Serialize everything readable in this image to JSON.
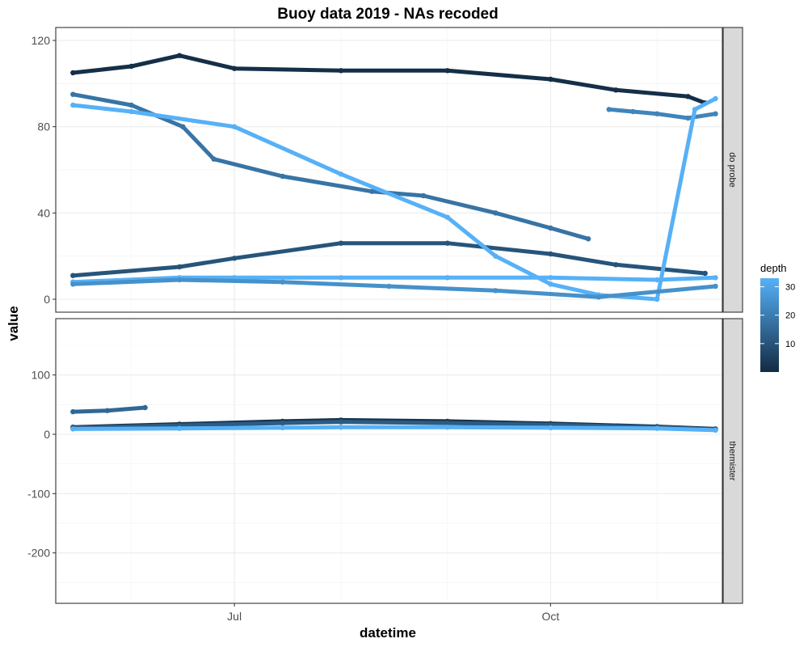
{
  "chart_data": {
    "type": "scatter",
    "title": "Buoy data 2019 - NAs recoded",
    "xlabel": "datetime",
    "ylabel": "value",
    "x_ticks": [
      "Jul",
      "Oct"
    ],
    "x_range": [
      "2019-05-10",
      "2019-11-20"
    ],
    "grid": true,
    "legend": {
      "title": "depth",
      "position": "right",
      "ticks": [
        10,
        20,
        30
      ],
      "range": [
        0,
        33
      ],
      "low_color": "#132B43",
      "high_color": "#56B1F7"
    },
    "panels": [
      {
        "strip": "do probe",
        "ylim": [
          -6,
          126
        ],
        "y_ticks": [
          0,
          40,
          80,
          120
        ],
        "series": [
          {
            "depth": 1,
            "x": [
              "2019-05-15",
              "2019-06-01",
              "2019-06-15",
              "2019-07-01",
              "2019-08-01",
              "2019-09-01",
              "2019-10-01",
              "2019-10-20",
              "2019-11-10",
              "2019-11-15"
            ],
            "values": [
              105,
              108,
              113,
              107,
              106,
              106,
              102,
              97,
              94,
              91
            ]
          },
          {
            "depth": 10,
            "x": [
              "2019-05-15",
              "2019-06-15",
              "2019-07-01",
              "2019-08-01",
              "2019-09-01",
              "2019-10-01",
              "2019-10-20",
              "2019-11-15"
            ],
            "values": [
              11,
              15,
              19,
              26,
              26,
              21,
              16,
              12
            ]
          },
          {
            "depth": 18,
            "x": [
              "2019-05-15",
              "2019-06-01",
              "2019-06-16",
              "2019-06-25",
              "2019-07-15",
              "2019-08-10",
              "2019-08-25",
              "2019-09-15",
              "2019-10-01",
              "2019-10-12"
            ],
            "values": [
              95,
              90,
              80,
              65,
              57,
              50,
              48,
              40,
              33,
              28
            ]
          },
          {
            "depth": 22,
            "x": [
              "2019-10-18",
              "2019-10-25",
              "2019-11-01",
              "2019-11-10",
              "2019-11-18"
            ],
            "values": [
              88,
              87,
              86,
              84,
              86
            ]
          },
          {
            "depth": 33,
            "x": [
              "2019-05-15",
              "2019-06-01",
              "2019-07-01",
              "2019-08-01",
              "2019-09-01",
              "2019-09-15",
              "2019-10-01",
              "2019-10-15",
              "2019-11-01",
              "2019-11-12",
              "2019-11-18"
            ],
            "values": [
              90,
              87,
              80,
              58,
              38,
              20,
              7,
              2,
              0,
              88,
              93
            ]
          },
          {
            "depth": 33,
            "x": [
              "2019-05-15",
              "2019-06-15",
              "2019-07-01",
              "2019-08-01",
              "2019-09-01",
              "2019-10-01",
              "2019-11-01",
              "2019-11-18"
            ],
            "values": [
              8,
              10,
              10,
              10,
              10,
              10,
              9,
              10
            ]
          },
          {
            "depth": 25,
            "x": [
              "2019-05-15",
              "2019-06-15",
              "2019-07-15",
              "2019-08-15",
              "2019-09-15",
              "2019-10-15",
              "2019-11-18"
            ],
            "values": [
              7,
              9,
              8,
              6,
              4,
              1,
              6
            ]
          }
        ]
      },
      {
        "strip": "thermister",
        "ylim": [
          -285,
          195
        ],
        "y_ticks": [
          -200,
          -100,
          0,
          100
        ],
        "series": [
          {
            "depth": 15,
            "x": [
              "2019-05-15",
              "2019-05-25",
              "2019-06-05"
            ],
            "values": [
              38,
              40,
              45
            ]
          },
          {
            "depth": 2,
            "x": [
              "2019-05-15",
              "2019-06-15",
              "2019-07-15",
              "2019-08-01",
              "2019-09-01",
              "2019-10-01",
              "2019-11-01",
              "2019-11-18"
            ],
            "values": [
              12,
              17,
              22,
              24,
              22,
              18,
              13,
              9
            ]
          },
          {
            "depth": 12,
            "x": [
              "2019-05-15",
              "2019-06-15",
              "2019-07-15",
              "2019-08-01",
              "2019-09-01",
              "2019-10-01",
              "2019-11-01",
              "2019-11-18"
            ],
            "values": [
              11,
              15,
              19,
              21,
              19,
              16,
              12,
              8
            ]
          },
          {
            "depth": 33,
            "x": [
              "2019-05-15",
              "2019-06-15",
              "2019-07-15",
              "2019-08-01",
              "2019-09-01",
              "2019-10-01",
              "2019-11-01",
              "2019-11-18"
            ],
            "values": [
              9,
              10,
              11,
              12,
              12,
              11,
              10,
              7
            ]
          }
        ]
      }
    ]
  }
}
